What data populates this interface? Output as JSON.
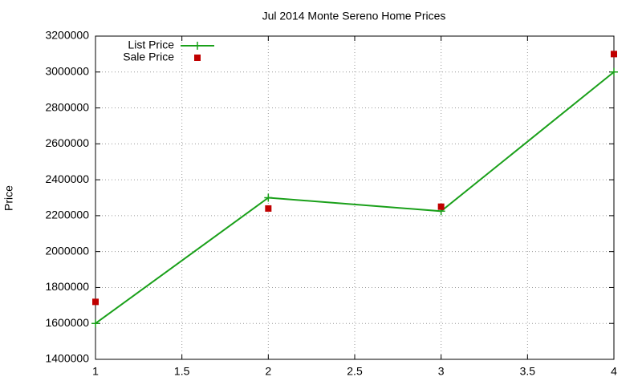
{
  "chart_data": {
    "type": "line",
    "title": "Jul 2014 Monte Sereno Home Prices",
    "y_label": "Price",
    "x": [
      1,
      2,
      3,
      4
    ],
    "series": [
      {
        "name": "List Price",
        "color": "#1aa01a",
        "values": [
          1600000,
          2300000,
          2225000,
          3000000
        ],
        "style": "line-points"
      },
      {
        "name": "Sale Price",
        "color": "#c00000",
        "values": [
          1720000,
          2240000,
          2250000,
          3100000
        ],
        "style": "points"
      }
    ],
    "xlim": [
      1,
      4
    ],
    "xticks": [
      1,
      1.5,
      2,
      2.5,
      3,
      3.5,
      4
    ],
    "ylim": [
      1400000,
      3200000
    ],
    "yticks": [
      1400000,
      1600000,
      1800000,
      2000000,
      2200000,
      2400000,
      2600000,
      2800000,
      3000000,
      3200000
    ],
    "grid": true,
    "legend": "top-left"
  }
}
